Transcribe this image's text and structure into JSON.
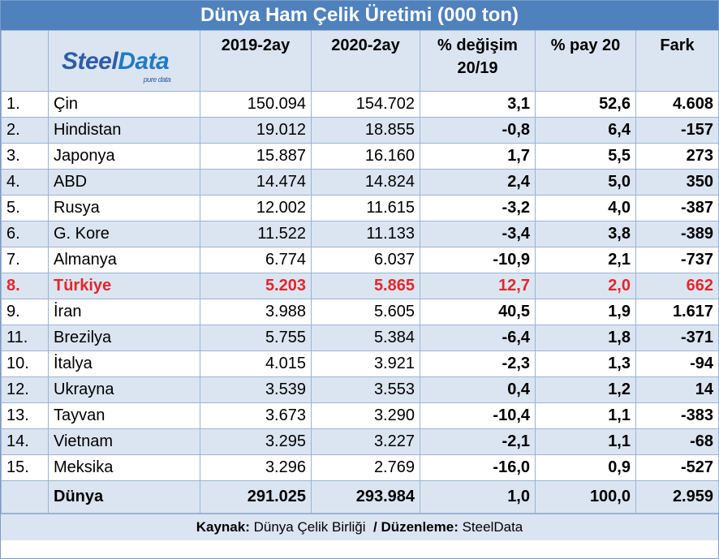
{
  "chart_data": {
    "type": "table",
    "title": "Dünya Ham Çelik Üretimi (000 ton)",
    "logo": {
      "part1": "Steel",
      "part2": "Data",
      "tagline": "pure data"
    },
    "columns": [
      "",
      "",
      "2019-2ay",
      "2020-2ay",
      "% değişim 20/19",
      "% pay 20",
      "Fark"
    ],
    "header": {
      "c2019": "2019-2ay",
      "c2020": "2020-2ay",
      "change1": "% değişim",
      "change2": "20/19",
      "share": "% pay 20",
      "diff": "Fark"
    },
    "rows": [
      {
        "rank": "1.",
        "country": "Çin",
        "y2019": "150.094",
        "y2020": "154.702",
        "change": "3,1",
        "share": "52,6",
        "diff": "4.608"
      },
      {
        "rank": "2.",
        "country": "Hindistan",
        "y2019": "19.012",
        "y2020": "18.855",
        "change": "-0,8",
        "share": "6,4",
        "diff": "-157"
      },
      {
        "rank": "3.",
        "country": "Japonya",
        "y2019": "15.887",
        "y2020": "16.160",
        "change": "1,7",
        "share": "5,5",
        "diff": "273"
      },
      {
        "rank": "4.",
        "country": "ABD",
        "y2019": "14.474",
        "y2020": "14.824",
        "change": "2,4",
        "share": "5,0",
        "diff": "350"
      },
      {
        "rank": "5.",
        "country": "Rusya",
        "y2019": "12.002",
        "y2020": "11.615",
        "change": "-3,2",
        "share": "4,0",
        "diff": "-387"
      },
      {
        "rank": "6.",
        "country": "G. Kore",
        "y2019": "11.522",
        "y2020": "11.133",
        "change": "-3,4",
        "share": "3,8",
        "diff": "-389"
      },
      {
        "rank": "7.",
        "country": "Almanya",
        "y2019": "6.774",
        "y2020": "6.037",
        "change": "-10,9",
        "share": "2,1",
        "diff": "-737"
      },
      {
        "rank": "8.",
        "country": "Türkiye",
        "y2019": "5.203",
        "y2020": "5.865",
        "change": "12,7",
        "share": "2,0",
        "diff": "662"
      },
      {
        "rank": "9.",
        "country": "İran",
        "y2019": "3.988",
        "y2020": "5.605",
        "change": "40,5",
        "share": "1,9",
        "diff": "1.617"
      },
      {
        "rank": "11.",
        "country": "Brezilya",
        "y2019": "5.755",
        "y2020": "5.384",
        "change": "-6,4",
        "share": "1,8",
        "diff": "-371"
      },
      {
        "rank": "10.",
        "country": "İtalya",
        "y2019": "4.015",
        "y2020": "3.921",
        "change": "-2,3",
        "share": "1,3",
        "diff": "-94"
      },
      {
        "rank": "12.",
        "country": "Ukrayna",
        "y2019": "3.539",
        "y2020": "3.553",
        "change": "0,4",
        "share": "1,2",
        "diff": "14"
      },
      {
        "rank": "13.",
        "country": "Tayvan",
        "y2019": "3.673",
        "y2020": "3.290",
        "change": "-10,4",
        "share": "1,1",
        "diff": "-383"
      },
      {
        "rank": "14.",
        "country": "Vietnam",
        "y2019": "3.295",
        "y2020": "3.227",
        "change": "-2,1",
        "share": "1,1",
        "diff": "-68"
      },
      {
        "rank": "15.",
        "country": "Meksika",
        "y2019": "3.296",
        "y2020": "2.769",
        "change": "-16,0",
        "share": "0,9",
        "diff": "-527"
      }
    ],
    "total": {
      "country": "Dünya",
      "y2019": "291.025",
      "y2020": "293.984",
      "change": "1,0",
      "share": "100,0",
      "diff": "2.959"
    },
    "highlight_row": "Türkiye",
    "highlight_color": "#e3262b",
    "footer": {
      "source_label": "Kaynak:",
      "source": "Dünya Çelik Birliği",
      "edit_label": "/ Düzenleme:",
      "editor": "SteelData"
    }
  }
}
